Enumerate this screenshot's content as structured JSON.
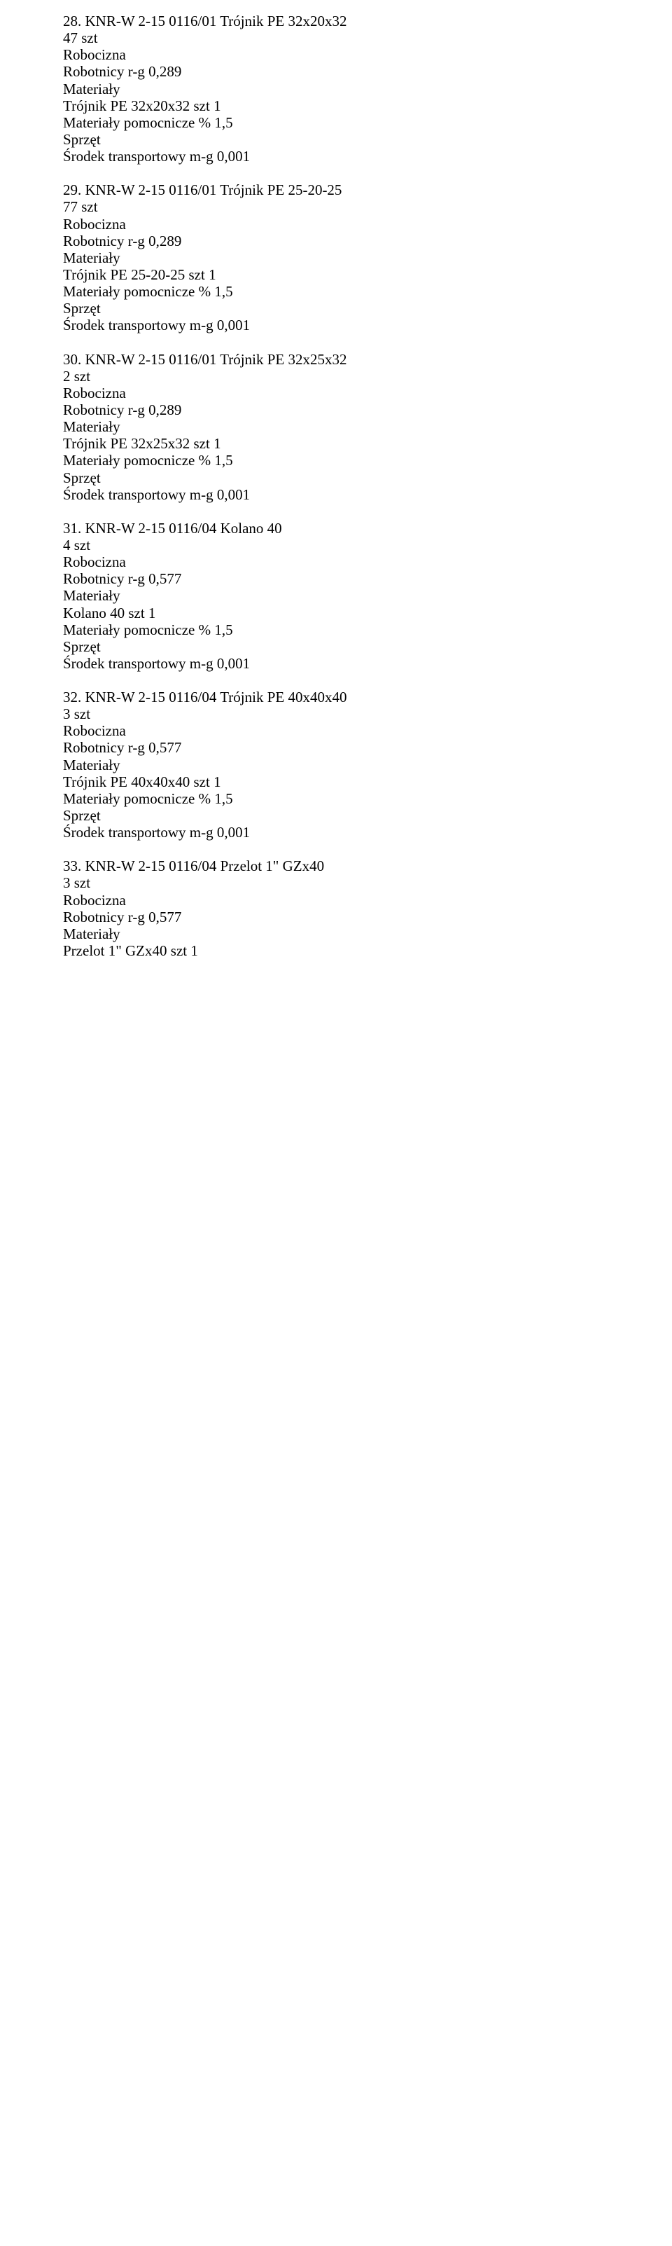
{
  "items": [
    {
      "number": "28.",
      "code": "KNR-W 2-15 0116/01",
      "title": "Trójnik PE 32x20x32",
      "qty": "47 szt",
      "robocizna_header": "Robocizna",
      "robocizna_line": "Robotnicy r-g 0,289",
      "materialy_header": "Materiały",
      "material_line": "Trójnik PE 32x20x32 szt 1",
      "material_aux": "Materiały pomocnicze % 1,5",
      "sprzet_header": "Sprzęt",
      "sprzet_line": "Środek transportowy m-g 0,001"
    },
    {
      "number": "29.",
      "code": "KNR-W 2-15 0116/01",
      "title": "Trójnik PE 25-20-25",
      "qty": "77 szt",
      "robocizna_header": "Robocizna",
      "robocizna_line": "Robotnicy r-g 0,289",
      "materialy_header": "Materiały",
      "material_line": "Trójnik PE 25-20-25 szt 1",
      "material_aux": "Materiały pomocnicze % 1,5",
      "sprzet_header": "Sprzęt",
      "sprzet_line": "Środek transportowy m-g 0,001"
    },
    {
      "number": "30.",
      "code": "KNR-W 2-15 0116/01",
      "title": "Trójnik PE 32x25x32",
      "qty": "2 szt",
      "robocizna_header": "Robocizna",
      "robocizna_line": "Robotnicy r-g 0,289",
      "materialy_header": "Materiały",
      "material_line": "Trójnik PE 32x25x32 szt 1",
      "material_aux": "Materiały pomocnicze % 1,5",
      "sprzet_header": "Sprzęt",
      "sprzet_line": "Środek transportowy m-g 0,001"
    },
    {
      "number": "31.",
      "code": "KNR-W 2-15 0116/04",
      "title": "Kolano 40",
      "qty": "4 szt",
      "robocizna_header": "Robocizna",
      "robocizna_line": "Robotnicy r-g 0,577",
      "materialy_header": "Materiały",
      "material_line": "Kolano 40 szt 1",
      "material_aux": "Materiały pomocnicze % 1,5",
      "sprzet_header": "Sprzęt",
      "sprzet_line": "Środek transportowy m-g 0,001"
    },
    {
      "number": "32.",
      "code": "KNR-W 2-15 0116/04",
      "title": "Trójnik PE 40x40x40",
      "qty": "3 szt",
      "robocizna_header": "Robocizna",
      "robocizna_line": "Robotnicy r-g 0,577",
      "materialy_header": "Materiały",
      "material_line": "Trójnik PE 40x40x40 szt 1",
      "material_aux": "Materiały pomocnicze % 1,5",
      "sprzet_header": "Sprzęt",
      "sprzet_line": "Środek transportowy m-g 0,001"
    },
    {
      "number": "33.",
      "code": "KNR-W 2-15 0116/04",
      "title": "Przelot 1\" GZx40",
      "qty": "3 szt",
      "robocizna_header": "Robocizna",
      "robocizna_line": "Robotnicy r-g 0,577",
      "materialy_header": "Materiały",
      "material_line": "Przelot 1\" GZx40 szt 1",
      "material_aux": "",
      "sprzet_header": "",
      "sprzet_line": ""
    }
  ]
}
